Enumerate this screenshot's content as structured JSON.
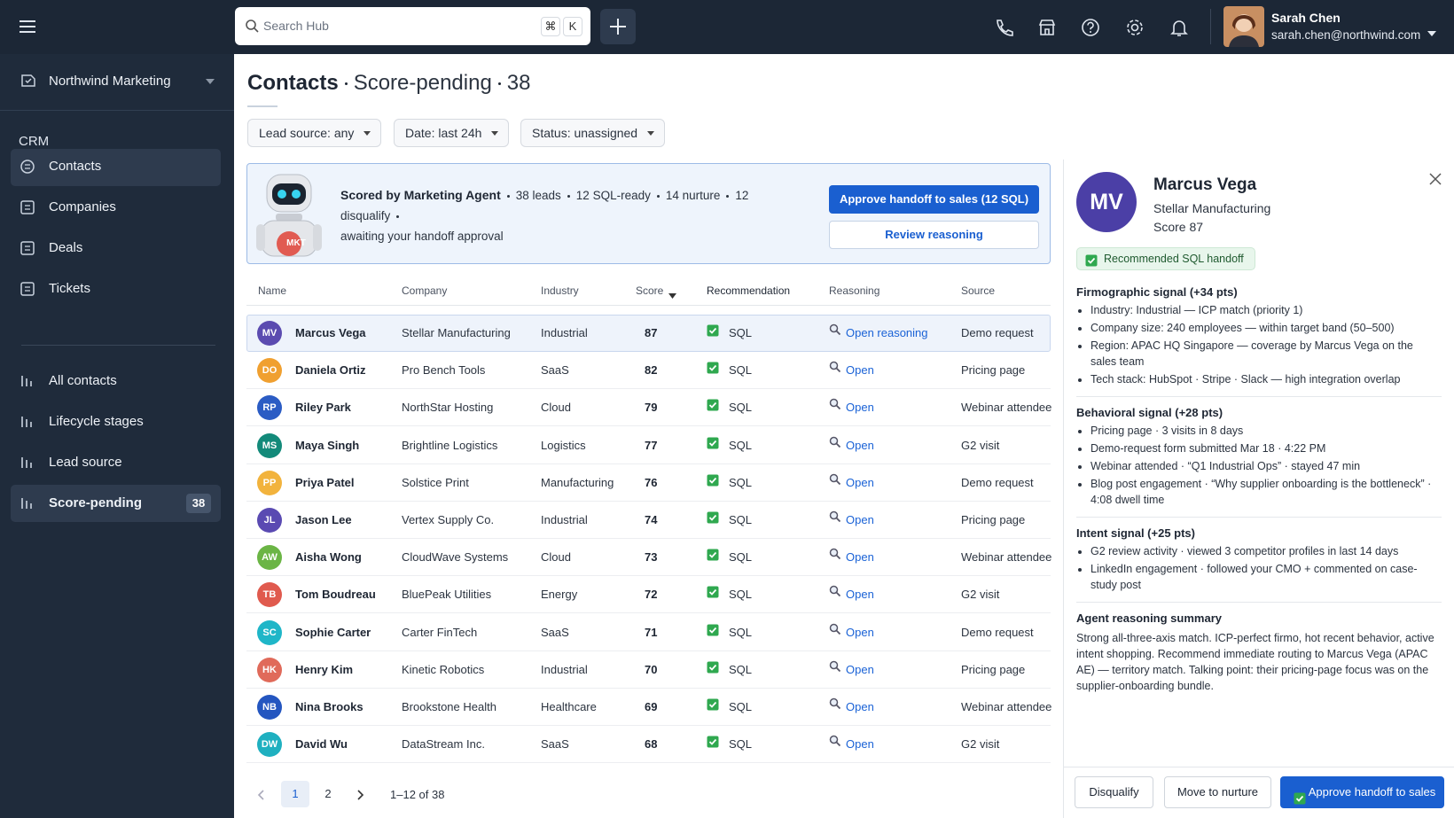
{
  "topbar": {
    "search_placeholder": "Search Hub",
    "shortcut_cmd": "⌘",
    "shortcut_key": "K",
    "user_name": "Sarah Chen",
    "user_email": "sarah.chen@northwind.com"
  },
  "sidebar": {
    "workspace": "Northwind Marketing",
    "section": "CRM",
    "nav": [
      {
        "label": "Contacts"
      },
      {
        "label": "Companies"
      },
      {
        "label": "Deals"
      },
      {
        "label": "Tickets"
      }
    ],
    "views": [
      {
        "label": "All contacts"
      },
      {
        "label": "Lifecycle stages"
      },
      {
        "label": "Lead source"
      },
      {
        "label": "Score-pending",
        "count": 38
      }
    ]
  },
  "header": {
    "title": "Contacts",
    "view": "Score-pending",
    "count": 38
  },
  "filters": [
    "Lead source: any",
    "Date: last 24h",
    "Status: unassigned"
  ],
  "agent_banner": {
    "badge": "MKT",
    "title": "Scored by Marketing Agent",
    "stats": [
      "38 leads",
      "12 SQL-ready",
      "14 nurture",
      "12 disqualify"
    ],
    "note": "awaiting your handoff approval",
    "primary_action": "Approve handoff to sales (12 SQL)",
    "secondary_action": "Review reasoning"
  },
  "table": {
    "columns": [
      "Name",
      "Company",
      "Industry",
      "Score",
      "Recommendation",
      "Reasoning",
      "Source"
    ],
    "rows": [
      {
        "initials": "MV",
        "color": "#5b4bb0",
        "name": "Marcus Vega",
        "company": "Stellar Manufacturing",
        "industry": "Industrial",
        "score": 87,
        "recommendation": "SQL",
        "reasoning": "Open reasoning",
        "source": "Demo request"
      },
      {
        "initials": "DO",
        "color": "#f0a030",
        "name": "Daniela Ortiz",
        "company": "Pro Bench Tools",
        "industry": "SaaS",
        "score": 82,
        "recommendation": "SQL",
        "reasoning": "Open",
        "source": "Pricing page"
      },
      {
        "initials": "RP",
        "color": "#2b5cc4",
        "name": "Riley Park",
        "company": "NorthStar Hosting",
        "industry": "Cloud",
        "score": 79,
        "recommendation": "SQL",
        "reasoning": "Open",
        "source": "Webinar attendee"
      },
      {
        "initials": "MS",
        "color": "#138a7a",
        "name": "Maya Singh",
        "company": "Brightline Logistics",
        "industry": "Logistics",
        "score": 77,
        "recommendation": "SQL",
        "reasoning": "Open",
        "source": "G2 visit"
      },
      {
        "initials": "PP",
        "color": "#f2b33d",
        "name": "Priya Patel",
        "company": "Solstice Print",
        "industry": "Manufacturing",
        "score": 76,
        "recommendation": "SQL",
        "reasoning": "Open",
        "source": "Demo request"
      },
      {
        "initials": "JL",
        "color": "#5a4ab2",
        "name": "Jason Lee",
        "company": "Vertex Supply Co.",
        "industry": "Industrial",
        "score": 74,
        "recommendation": "SQL",
        "reasoning": "Open",
        "source": "Pricing page"
      },
      {
        "initials": "AW",
        "color": "#6bb545",
        "name": "Aisha Wong",
        "company": "CloudWave Systems",
        "industry": "Cloud",
        "score": 73,
        "recommendation": "SQL",
        "reasoning": "Open",
        "source": "Webinar attendee"
      },
      {
        "initials": "TB",
        "color": "#e05a4e",
        "name": "Tom Boudreau",
        "company": "BluePeak Utilities",
        "industry": "Energy",
        "score": 72,
        "recommendation": "SQL",
        "reasoning": "Open",
        "source": "G2 visit"
      },
      {
        "initials": "SC",
        "color": "#1fb6c8",
        "name": "Sophie Carter",
        "company": "Carter FinTech",
        "industry": "SaaS",
        "score": 71,
        "recommendation": "SQL",
        "reasoning": "Open",
        "source": "Demo request"
      },
      {
        "initials": "HK",
        "color": "#e06a5a",
        "name": "Henry Kim",
        "company": "Kinetic Robotics",
        "industry": "Industrial",
        "score": 70,
        "recommendation": "SQL",
        "reasoning": "Open",
        "source": "Pricing page"
      },
      {
        "initials": "NB",
        "color": "#2456c0",
        "name": "Nina Brooks",
        "company": "Brookstone Health",
        "industry": "Healthcare",
        "score": 69,
        "recommendation": "SQL",
        "reasoning": "Open",
        "source": "Webinar attendee"
      },
      {
        "initials": "DW",
        "color": "#1fb0c0",
        "name": "David Wu",
        "company": "DataStream Inc.",
        "industry": "SaaS",
        "score": 68,
        "recommendation": "SQL",
        "reasoning": "Open",
        "source": "G2 visit"
      }
    ]
  },
  "pagination": {
    "pages": [
      1,
      2
    ],
    "range": "1–12 of 38"
  },
  "detail": {
    "initials": "MV",
    "name": "Marcus Vega",
    "company": "Stellar Manufacturing",
    "score": "Score 87",
    "badge": "Recommended SQL handoff",
    "sections": [
      {
        "title": "Firmographic signal (+34 pts)",
        "items": [
          "Industry: Industrial — ICP match (priority 1)",
          "Company size: 240 employees — within target band (50–500)",
          "Region: APAC HQ Singapore — coverage by Marcus Vega on the sales team",
          "Tech stack: HubSpot · Stripe · Slack — high integration overlap"
        ]
      },
      {
        "title": "Behavioral signal (+28 pts)",
        "items": [
          "Pricing page · 3 visits in 8 days",
          "Demo-request form submitted Mar 18 · 4:22 PM",
          "Webinar attended · “Q1 Industrial Ops” · stayed 47 min",
          "Blog post engagement · “Why supplier onboarding is the bottleneck” · 4:08 dwell time"
        ]
      },
      {
        "title": "Intent signal (+25 pts)",
        "items": [
          "G2 review activity · viewed 3 competitor profiles in last 14 days",
          "LinkedIn engagement · followed your CMO + commented on case-study post"
        ]
      }
    ],
    "summary": {
      "title": "Agent reasoning summary",
      "text": "Strong all-three-axis match. ICP-perfect firmo, hot recent behavior, active intent shopping. Recommend immediate routing to Marcus Vega (APAC AE) — territory match. Talking point: their pricing-page focus was on the supplier-onboarding bundle."
    },
    "actions": [
      "Disqualify",
      "Move to nurture",
      "Approve handoff to sales"
    ]
  }
}
